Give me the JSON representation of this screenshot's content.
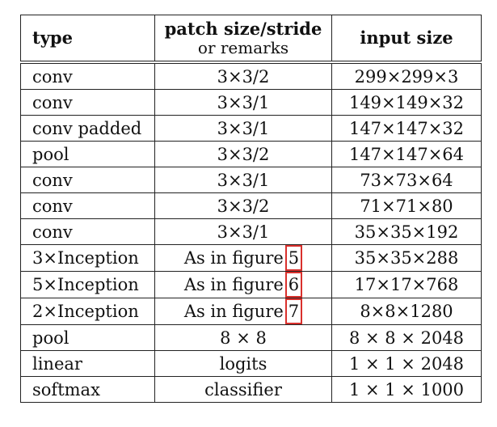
{
  "header": {
    "type": "type",
    "patch_line1": "patch size/stride",
    "patch_line2": "or remarks",
    "input": "input size"
  },
  "rows": [
    {
      "type": "conv",
      "patch": "3×3/2",
      "input": "299×299×3"
    },
    {
      "type": "conv",
      "patch": "3×3/1",
      "input": "149×149×32"
    },
    {
      "type": "conv padded",
      "patch": "3×3/1",
      "input": "147×147×32"
    },
    {
      "type": "pool",
      "patch": "3×3/2",
      "input": "147×147×64"
    },
    {
      "type": "conv",
      "patch": "3×3/1",
      "input": "73×73×64"
    },
    {
      "type": "conv",
      "patch": "3×3/2",
      "input": "71×71×80"
    },
    {
      "type": "conv",
      "patch": "3×3/1",
      "input": "35×35×192"
    },
    {
      "type": "3×Inception",
      "patch": "As in figure",
      "figure_ref": "5",
      "input": "35×35×288"
    },
    {
      "type": "5×Inception",
      "patch": "As in figure",
      "figure_ref": "6",
      "input": "17×17×768"
    },
    {
      "type": "2×Inception",
      "patch": "As in figure",
      "figure_ref": "7",
      "input": "8×8×1280"
    },
    {
      "type": "pool",
      "patch": "8 × 8",
      "input": "8 × 8 × 2048"
    },
    {
      "type": "linear",
      "patch": "logits",
      "input": "1 × 1 × 2048"
    },
    {
      "type": "softmax",
      "patch": "classifier",
      "input": "1 × 1 × 1000"
    }
  ],
  "colors": {
    "highlight_box": "#d9302c"
  }
}
